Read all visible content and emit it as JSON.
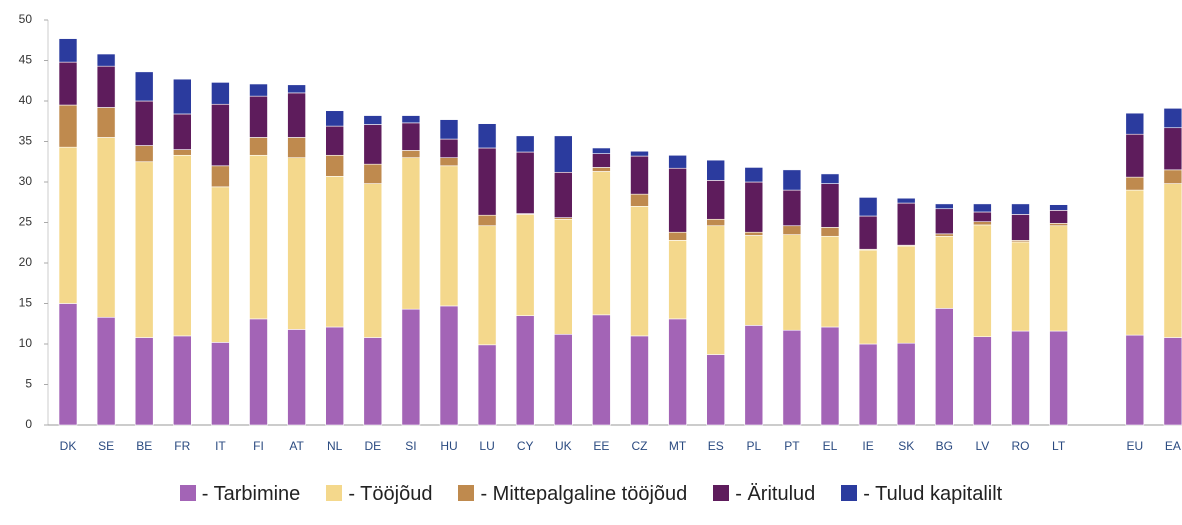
{
  "chart_data": {
    "type": "stacked_bar",
    "categories": [
      "DK",
      "SE",
      "BE",
      "FR",
      "IT",
      "FI",
      "AT",
      "NL",
      "DE",
      "SI",
      "HU",
      "LU",
      "CY",
      "UK",
      "EE",
      "CZ",
      "MT",
      "ES",
      "PL",
      "PT",
      "EL",
      "IE",
      "SK",
      "BG",
      "LV",
      "RO",
      "LT",
      null,
      "EU",
      "EA"
    ],
    "series": [
      {
        "name": "- Tarbimine",
        "color": "#a364b6",
        "values": [
          15.0,
          13.3,
          10.8,
          11.0,
          10.2,
          13.1,
          11.8,
          12.1,
          10.8,
          14.3,
          14.7,
          9.9,
          13.5,
          11.2,
          13.6,
          11.0,
          13.1,
          8.7,
          12.3,
          11.7,
          12.1,
          10.0,
          10.1,
          14.4,
          10.9,
          11.6,
          11.6,
          null,
          11.1,
          10.8
        ]
      },
      {
        "name": "- Tööjõud",
        "color": "#f4d88c",
        "values": [
          19.3,
          22.2,
          21.7,
          22.3,
          19.2,
          20.2,
          21.2,
          18.6,
          19.0,
          18.7,
          17.3,
          14.7,
          12.5,
          14.2,
          17.7,
          16.0,
          9.7,
          15.9,
          11.1,
          11.8,
          11.2,
          11.6,
          12.0,
          8.9,
          13.8,
          11.0,
          13.0,
          null,
          17.9,
          19.0
        ]
      },
      {
        "name": "- Mittepalgaline tööjõud",
        "color": "#bf8a4e",
        "values": [
          5.2,
          3.7,
          2.0,
          0.7,
          2.6,
          2.2,
          2.5,
          2.6,
          2.4,
          0.9,
          1.0,
          1.3,
          0.1,
          0.2,
          0.5,
          1.5,
          1.0,
          0.8,
          0.4,
          1.1,
          1.1,
          0.1,
          0.1,
          0.3,
          0.4,
          0.2,
          0.3,
          null,
          1.6,
          1.7
        ]
      },
      {
        "name": "- Äritulud",
        "color": "#5e1c5c",
        "values": [
          5.3,
          5.1,
          5.5,
          4.4,
          7.6,
          5.1,
          5.5,
          3.6,
          4.9,
          3.4,
          2.3,
          8.3,
          7.6,
          5.6,
          1.7,
          4.7,
          7.9,
          4.8,
          6.2,
          4.4,
          5.4,
          4.1,
          5.2,
          3.1,
          1.2,
          3.2,
          1.6,
          null,
          5.3,
          5.2
        ]
      },
      {
        "name": "- Tulud kapitalilt",
        "color": "#2b3b9e",
        "values": [
          2.9,
          1.5,
          3.6,
          4.3,
          2.7,
          1.5,
          1.0,
          1.9,
          1.1,
          0.9,
          2.4,
          3.0,
          2.0,
          4.5,
          0.7,
          0.6,
          1.6,
          2.5,
          1.8,
          2.5,
          1.2,
          2.3,
          0.6,
          0.6,
          1.0,
          1.3,
          0.7,
          null,
          2.6,
          2.4
        ]
      }
    ],
    "ylim": [
      0,
      50
    ],
    "yticks": [
      0,
      5,
      10,
      15,
      20,
      25,
      30,
      35,
      40,
      45,
      50
    ],
    "grid": false
  }
}
